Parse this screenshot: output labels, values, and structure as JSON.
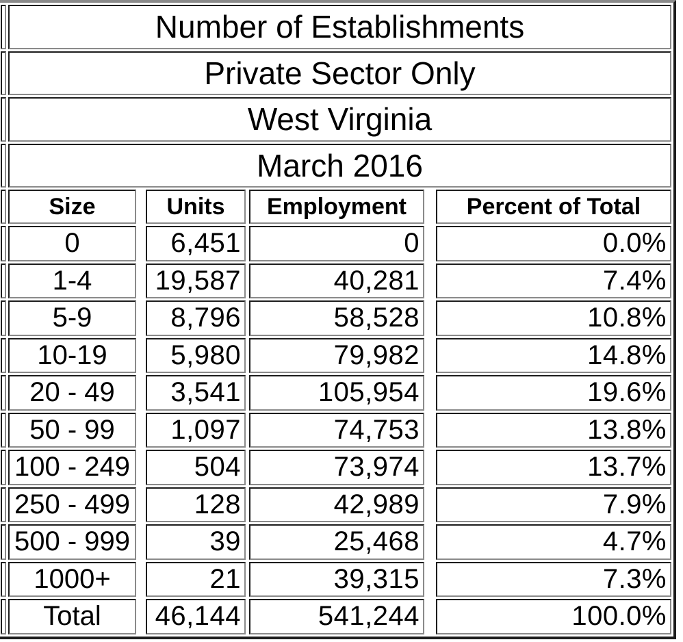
{
  "titles": [
    "Number of Establishments",
    "Private Sector Only",
    "West Virginia",
    "March 2016"
  ],
  "chart_data": {
    "type": "table",
    "title": "Number of Establishments",
    "subtitle": "Private Sector Only",
    "region": "West Virginia",
    "period": "March 2016",
    "columns": [
      "Size",
      "Units",
      "Employment",
      "Percent of Total"
    ],
    "rows": [
      [
        "0",
        "6,451",
        "0",
        "0.0%"
      ],
      [
        "1-4",
        "19,587",
        "40,281",
        "7.4%"
      ],
      [
        "5-9",
        "8,796",
        "58,528",
        "10.8%"
      ],
      [
        "10-19",
        "5,980",
        "79,982",
        "14.8%"
      ],
      [
        "20 - 49",
        "3,541",
        "105,954",
        "19.6%"
      ],
      [
        "50 - 99",
        "1,097",
        "74,753",
        "13.8%"
      ],
      [
        "100 - 249",
        "504",
        "73,974",
        "13.7%"
      ],
      [
        "250 - 499",
        "128",
        "42,989",
        "7.9%"
      ],
      [
        "500 - 999",
        "39",
        "25,468",
        "4.7%"
      ],
      [
        "1000+",
        "21",
        "39,315",
        "7.3%"
      ],
      [
        "Total",
        "46,144",
        "541,244",
        "100.0%"
      ]
    ]
  },
  "colors": {
    "background": "#ffffff",
    "text": "#000000",
    "border_dark": "#1c1c1c",
    "border_light": "#8a8a8a"
  }
}
